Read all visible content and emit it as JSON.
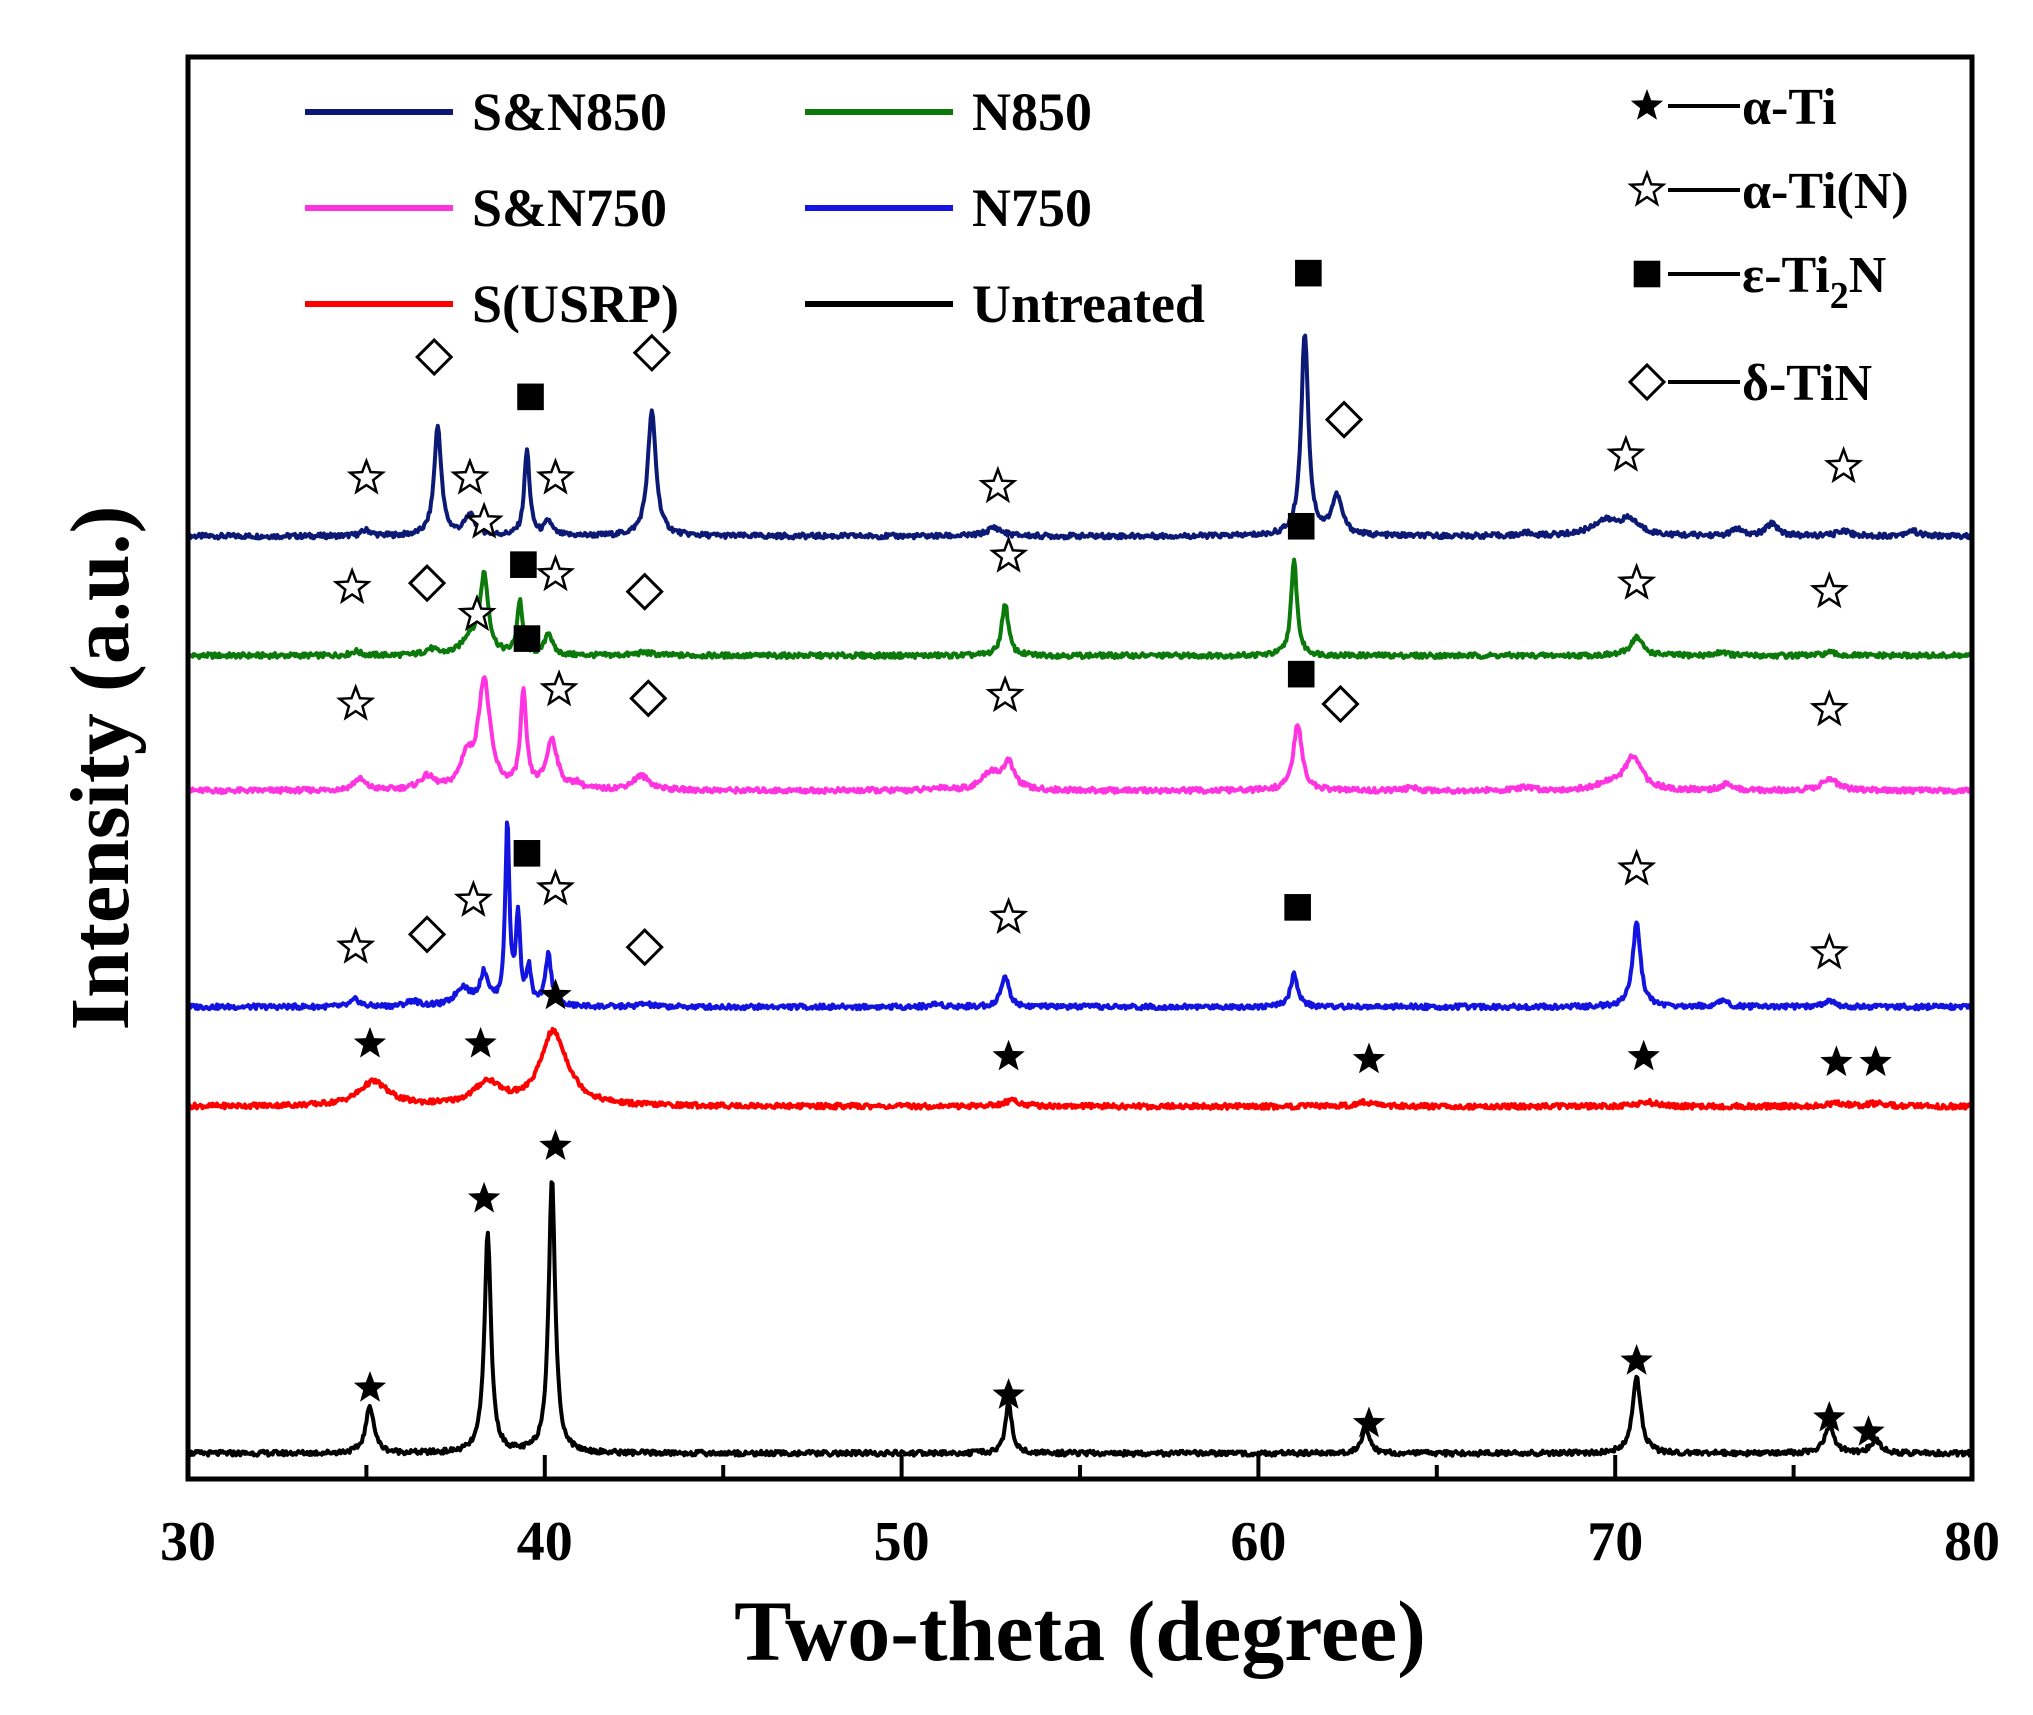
{
  "chart_data": {
    "type": "line",
    "title": "",
    "xlabel": "Two-theta (degree)",
    "ylabel": "Intensity (a.u.)",
    "xlim": [
      30,
      80
    ],
    "xticks": [
      30,
      40,
      50,
      60,
      70,
      80
    ],
    "ylim": [
      0,
      100
    ],
    "y_ticks_shown": false,
    "legend_position": "top-left",
    "series": [
      {
        "name": "S&N850",
        "color": "#0d1a75",
        "baseline": 66.3,
        "peaks": [
          [
            35.0,
            0.4,
            0.16
          ],
          [
            37.0,
            7.7,
            0.12
          ],
          [
            37.9,
            1.4,
            0.18
          ],
          [
            39.5,
            6.0,
            0.09
          ],
          [
            40.1,
            1.0,
            0.12
          ],
          [
            43.0,
            8.7,
            0.14
          ],
          [
            52.6,
            0.6,
            0.25
          ],
          [
            61.3,
            14.3,
            0.12
          ],
          [
            62.2,
            2.7,
            0.18
          ],
          [
            67.5,
            0.2,
            0.15
          ],
          [
            69.7,
            1.0,
            0.45
          ],
          [
            70.4,
            1.0,
            0.35
          ],
          [
            73.4,
            0.5,
            0.15
          ],
          [
            74.4,
            0.9,
            0.2
          ],
          [
            76.4,
            0.4,
            0.2
          ],
          [
            78.3,
            0.4,
            0.2
          ]
        ]
      },
      {
        "name": "N850",
        "color": "#0b7a0b",
        "baseline": 57.9,
        "peaks": [
          [
            34.7,
            0.3,
            0.15
          ],
          [
            36.8,
            0.4,
            0.2
          ],
          [
            38.3,
            5.5,
            0.14
          ],
          [
            37.9,
            1.2,
            0.25
          ],
          [
            39.3,
            3.8,
            0.09
          ],
          [
            40.1,
            1.6,
            0.12
          ],
          [
            42.8,
            0.2,
            0.3
          ],
          [
            52.9,
            3.7,
            0.11
          ],
          [
            61.0,
            6.7,
            0.1
          ],
          [
            70.6,
            1.3,
            0.2
          ],
          [
            73.0,
            0.3,
            0.15
          ],
          [
            76.0,
            0.2,
            0.2
          ]
        ]
      },
      {
        "name": "S&N750",
        "color": "#ff33e0",
        "baseline": 48.4,
        "peaks": [
          [
            34.8,
            0.8,
            0.2
          ],
          [
            36.7,
            0.9,
            0.25
          ],
          [
            37.8,
            2.0,
            0.2
          ],
          [
            38.3,
            7.6,
            0.2
          ],
          [
            39.4,
            6.6,
            0.1
          ],
          [
            40.2,
            3.5,
            0.18
          ],
          [
            40.9,
            0.4,
            0.15
          ],
          [
            42.7,
            1.0,
            0.3
          ],
          [
            51.1,
            0.2,
            0.2
          ],
          [
            52.5,
            1.2,
            0.3
          ],
          [
            53.0,
            1.8,
            0.2
          ],
          [
            61.1,
            4.6,
            0.15
          ],
          [
            64.3,
            0.2,
            0.2
          ],
          [
            67.5,
            0.2,
            0.25
          ],
          [
            70.5,
            2.3,
            0.3
          ],
          [
            69.8,
            0.4,
            0.4
          ],
          [
            73.1,
            0.4,
            0.2
          ],
          [
            76.0,
            0.9,
            0.25
          ]
        ]
      },
      {
        "name": "N750",
        "color": "#1414e0",
        "baseline": 33.2,
        "peaks": [
          [
            34.7,
            0.5,
            0.15
          ],
          [
            36.3,
            0.4,
            0.2
          ],
          [
            37.7,
            1.3,
            0.25
          ],
          [
            38.3,
            2.2,
            0.15
          ],
          [
            38.95,
            12.8,
            0.07
          ],
          [
            39.25,
            6.2,
            0.07
          ],
          [
            39.55,
            2.5,
            0.08
          ],
          [
            40.1,
            3.6,
            0.1
          ],
          [
            42.8,
            0.2,
            0.2
          ],
          [
            51.0,
            0.2,
            0.2
          ],
          [
            52.9,
            2.2,
            0.13
          ],
          [
            61.0,
            2.3,
            0.12
          ],
          [
            70.6,
            6.0,
            0.13
          ],
          [
            73.0,
            0.4,
            0.2
          ],
          [
            76.0,
            0.4,
            0.2
          ]
        ]
      },
      {
        "name": "S(USRP)",
        "color": "#ff0000",
        "baseline": 26.2,
        "peaks": [
          [
            35.2,
            1.7,
            0.5
          ],
          [
            38.4,
            1.6,
            0.45
          ],
          [
            40.2,
            4.3,
            0.4
          ],
          [
            40.5,
            1.2,
            0.5
          ],
          [
            53.1,
            0.4,
            0.3
          ],
          [
            63.0,
            0.3,
            0.3
          ],
          [
            70.9,
            0.3,
            0.3
          ],
          [
            76.2,
            0.2,
            0.3
          ],
          [
            77.3,
            0.2,
            0.3
          ]
        ]
      },
      {
        "name": "Untreated",
        "color": "#000000",
        "baseline": 1.8,
        "peaks": [
          [
            35.1,
            3.3,
            0.14
          ],
          [
            38.4,
            15.4,
            0.11
          ],
          [
            40.2,
            19.3,
            0.11
          ],
          [
            53.0,
            3.5,
            0.11
          ],
          [
            63.0,
            1.8,
            0.13
          ],
          [
            70.6,
            5.4,
            0.14
          ],
          [
            76.0,
            1.8,
            0.17
          ],
          [
            77.3,
            0.9,
            0.17
          ]
        ]
      }
    ],
    "phases": [
      {
        "symbol": "star-filled",
        "label": "α-Ti"
      },
      {
        "symbol": "star-open",
        "label": "α-Ti(N)"
      },
      {
        "symbol": "square-filled",
        "label": "ε-Ti",
        "subscript": "2",
        "suffix": "N"
      },
      {
        "symbol": "diamond-open",
        "label": "δ-TiN"
      }
    ],
    "peak_markers": [
      {
        "series": "S&N850",
        "symbol": "star-open",
        "x": [
          35.0,
          37.9,
          40.3,
          52.7,
          70.3,
          76.4
        ],
        "y": [
          70.4,
          70.4,
          70.4,
          69.8,
          72.0,
          71.2
        ]
      },
      {
        "series": "S&N850",
        "symbol": "diamond-open",
        "x": [
          36.9,
          43.0,
          62.4
        ],
        "y": [
          78.9,
          79.2,
          74.5
        ]
      },
      {
        "series": "S&N850",
        "symbol": "square-filled",
        "x": [
          39.6,
          61.4
        ],
        "y": [
          76.1,
          84.8
        ]
      },
      {
        "series": "N850",
        "symbol": "star-open",
        "x": [
          34.6,
          38.3,
          40.3,
          53.0,
          70.6,
          76.0
        ],
        "y": [
          62.7,
          67.3,
          63.6,
          64.9,
          63.0,
          62.4
        ]
      },
      {
        "series": "N850",
        "symbol": "diamond-open",
        "x": [
          36.7,
          42.8
        ],
        "y": [
          63.0,
          62.4
        ]
      },
      {
        "series": "N850",
        "symbol": "square-filled",
        "x": [
          39.4,
          61.2
        ],
        "y": [
          64.3,
          67.0
        ]
      },
      {
        "series": "S&N750",
        "symbol": "star-open",
        "x": [
          34.7,
          38.1,
          40.4,
          52.9,
          76.0
        ],
        "y": [
          54.5,
          60.8,
          55.5,
          55.1,
          54.1
        ]
      },
      {
        "series": "S&N750",
        "symbol": "diamond-open",
        "x": [
          42.9,
          62.3
        ],
        "y": [
          54.9,
          54.5
        ]
      },
      {
        "series": "S&N750",
        "symbol": "square-filled",
        "x": [
          39.5,
          61.2
        ],
        "y": [
          59.1,
          56.6
        ]
      },
      {
        "series": "N750",
        "symbol": "star-open",
        "x": [
          34.7,
          38.0,
          40.3,
          53.0,
          70.6,
          76.0
        ],
        "y": [
          37.4,
          40.7,
          41.5,
          39.5,
          42.9,
          37.0
        ]
      },
      {
        "series": "N750",
        "symbol": "diamond-open",
        "x": [
          36.7,
          42.8
        ],
        "y": [
          38.3,
          37.4
        ]
      },
      {
        "series": "N750",
        "symbol": "square-filled",
        "x": [
          39.5,
          61.1
        ],
        "y": [
          44.0,
          40.2
        ]
      },
      {
        "series": "S(USRP)",
        "symbol": "star-filled",
        "x": [
          35.1,
          38.2,
          40.3,
          53.0,
          63.1,
          70.8,
          76.2,
          77.3
        ],
        "y": [
          30.6,
          30.6,
          34.0,
          29.7,
          29.5,
          29.7,
          29.3,
          29.3
        ]
      },
      {
        "series": "Untreated",
        "symbol": "star-filled",
        "x": [
          35.1,
          38.3,
          40.3,
          53.0,
          63.1,
          70.6,
          76.0,
          77.1
        ],
        "y": [
          6.4,
          19.7,
          23.4,
          5.9,
          3.9,
          8.3,
          4.3,
          3.3
        ]
      }
    ]
  }
}
